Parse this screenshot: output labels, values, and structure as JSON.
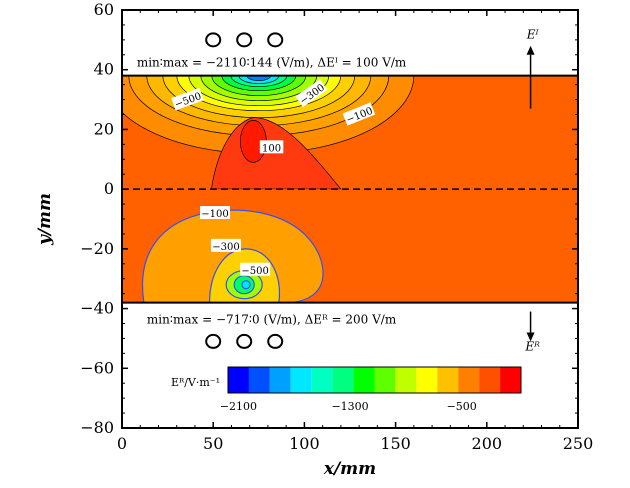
{
  "chart_data": {
    "type": "heatmap",
    "title": "",
    "xlabel": "x/mm",
    "ylabel": "y/mm",
    "xlim": [
      0,
      250
    ],
    "ylim": [
      -80,
      60
    ],
    "x_ticks": [
      "0",
      "50",
      "100",
      "150",
      "200",
      "250"
    ],
    "y_ticks": [
      "60",
      "40",
      "20",
      "0",
      "−20",
      "−40",
      "−60",
      "−80"
    ],
    "x_tick_values": [
      0,
      50,
      100,
      150,
      200,
      250
    ],
    "y_tick_values": [
      60,
      40,
      20,
      0,
      -20,
      -40,
      -60,
      -80
    ],
    "plate_top_y": 38,
    "plate_bottom_y": -38,
    "interface_y": 0,
    "annotation_top": "min∶max = −2110∶144 (V/m), ΔEᴵ = 100 V/m",
    "annotation_bottom": "min∶max = −717∶0 (V/m), ΔEᴿ = 200 V/m",
    "field_label_top": "Eᴵ",
    "field_label_bottom": "Eᴿ",
    "colorbar_label": "Eᴿ/V·m⁻¹",
    "colorbar_ticks": [
      "−2100",
      "−1300",
      "−500"
    ],
    "colorbar_colors": [
      "#0000ff",
      "#0050ff",
      "#00a0ff",
      "#00e8ff",
      "#00ffc0",
      "#00ff80",
      "#00ff00",
      "#60ff00",
      "#c0ff00",
      "#ffff00",
      "#ffc000",
      "#ff8000",
      "#ff5000",
      "#ff0000"
    ],
    "colorbar_min": -2100,
    "colorbar_max": 0,
    "contour_labels_top": [
      "−500",
      "−300",
      "−100",
      "100"
    ],
    "contour_labels_bottom": [
      "−100",
      "−300",
      "−500"
    ],
    "coil_x_top": [
      50,
      67,
      84
    ],
    "coil_y_top": 50,
    "coil_x_bottom": [
      50,
      67,
      84
    ],
    "coil_y_bottom": -51,
    "arrow_x": 224,
    "background_color": "#ff6000",
    "grid": false
  }
}
